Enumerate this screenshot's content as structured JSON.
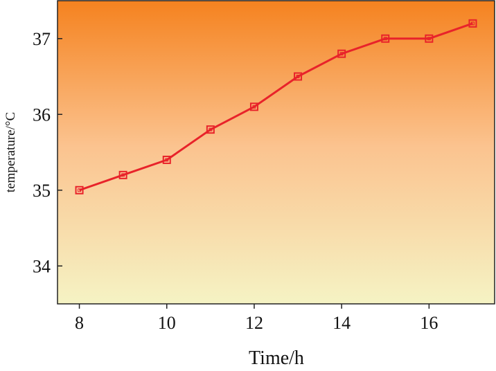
{
  "chart_data": {
    "type": "line",
    "title": "",
    "xlabel": "Time/h",
    "ylabel": "temperature/°C",
    "xlim": [
      7.5,
      17.5
    ],
    "ylim": [
      33.5,
      37.5
    ],
    "xticks": [
      8,
      10,
      12,
      14,
      16
    ],
    "yticks": [
      34,
      35,
      36,
      37
    ],
    "grid": false,
    "series": [
      {
        "color": "#e8232a",
        "marker": "square",
        "x": [
          8,
          9,
          10,
          11,
          12,
          13,
          14,
          15,
          16,
          17
        ],
        "y": [
          35.0,
          35.2,
          35.4,
          35.8,
          36.1,
          36.5,
          36.8,
          37.0,
          37.0,
          37.2
        ]
      }
    ],
    "background_gradient": {
      "top": "#f5821f",
      "middle": "#fbc38f",
      "bottom": "#f5f3c4"
    }
  }
}
